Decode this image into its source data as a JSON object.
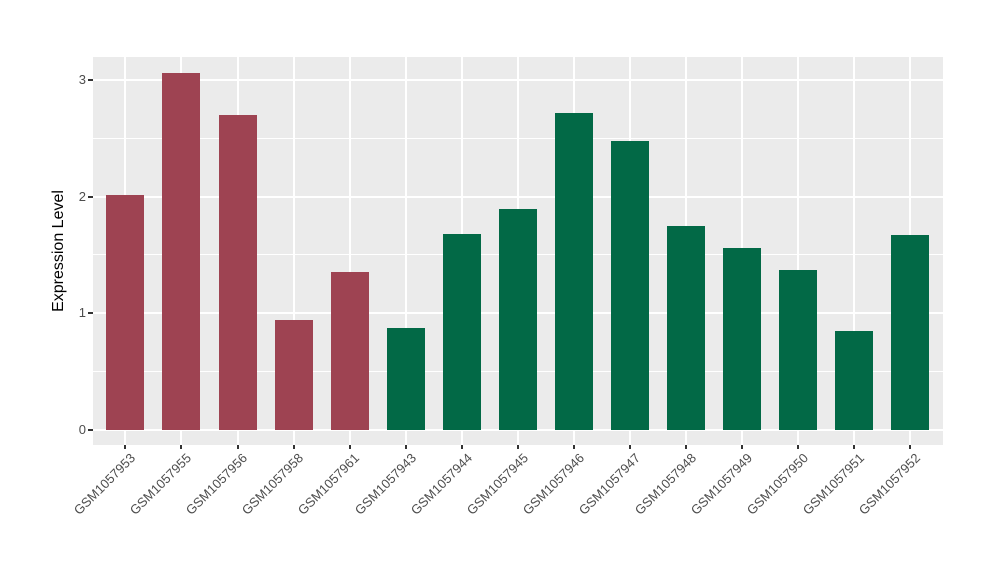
{
  "chart_data": {
    "type": "bar",
    "title": "",
    "xlabel": "",
    "ylabel": "Expression Level",
    "categories": [
      "GSM1057953",
      "GSM1057955",
      "GSM1057956",
      "GSM1057958",
      "GSM1057961",
      "GSM1057943",
      "GSM1057944",
      "GSM1057945",
      "GSM1057946",
      "GSM1057947",
      "GSM1057948",
      "GSM1057949",
      "GSM1057950",
      "GSM1057951",
      "GSM1057952"
    ],
    "values": [
      2.01,
      3.06,
      2.7,
      0.94,
      1.35,
      0.87,
      1.68,
      1.89,
      2.72,
      2.48,
      1.75,
      1.56,
      1.37,
      0.85,
      1.67
    ],
    "bar_groups": [
      "maroon",
      "maroon",
      "maroon",
      "maroon",
      "maroon",
      "green",
      "green",
      "green",
      "green",
      "green",
      "green",
      "green",
      "green",
      "green",
      "green"
    ],
    "group_colors": {
      "maroon": "#9E4352",
      "green": "#026946"
    },
    "y_ticks": [
      0,
      1,
      2,
      3
    ],
    "y_minor_gridlines": [
      0.5,
      1.5,
      2.5
    ],
    "ylim": [
      0,
      3.2
    ],
    "legend": "none",
    "grid": "on",
    "panel_background": "#EBEBEB",
    "gridline_color": "#FFFFFF",
    "axis_text_color": "#4D4D4D"
  }
}
